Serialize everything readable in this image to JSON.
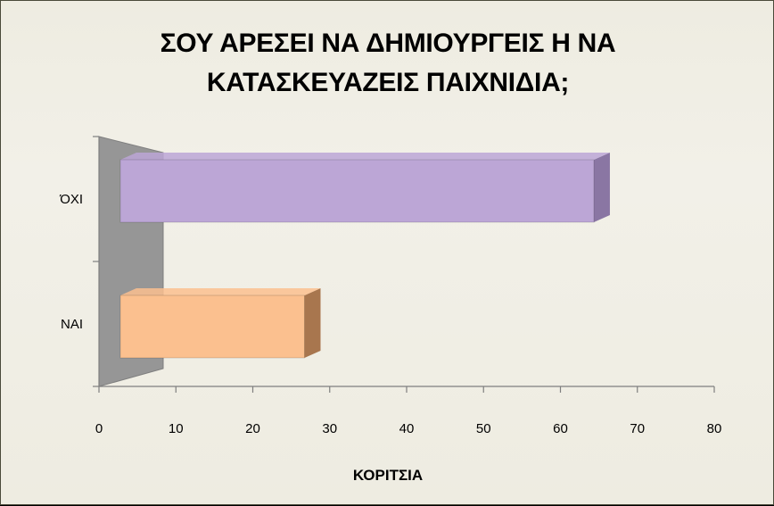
{
  "chart_data": {
    "type": "bar",
    "orientation": "horizontal",
    "title": "ΣΟΥ ΑΡΕΣΕΙ ΝΑ ΔΗΜΙΟΥΡΓΕΙΣ Η ΝΑ ΚΑΤΑΣΚΕΥΑΖΕΙΣ ΠΑΙΧΝΙΔΙΑ;",
    "title_lines": [
      "ΣΟΥ ΑΡΕΣΕΙ ΝΑ ΔΗΜΙΟΥΡΓΕΙΣ Η ΝΑ",
      "ΚΑΤΑΣΚΕΥΑΖΕΙΣ ΠΑΙΧΝΙΔΙΑ;"
    ],
    "categories": [
      "ΝΑΙ",
      "ΌΧΙ"
    ],
    "values": [
      28,
      72
    ],
    "xlabel": "ΚΟΡΙΤΣΙΑ",
    "ylabel": "",
    "xlim": [
      0,
      80
    ],
    "xticks": [
      "0",
      "10",
      "20",
      "30",
      "40",
      "50",
      "60",
      "70",
      "80"
    ],
    "grid": false,
    "legend": "none",
    "three_d": true,
    "colors": {
      "bars": [
        "#fbc08f",
        "#bca6d6"
      ],
      "bar_sides": [
        "#a8764e",
        "#8a76a3"
      ],
      "wall": "#969696",
      "background": "#eeece1"
    }
  }
}
